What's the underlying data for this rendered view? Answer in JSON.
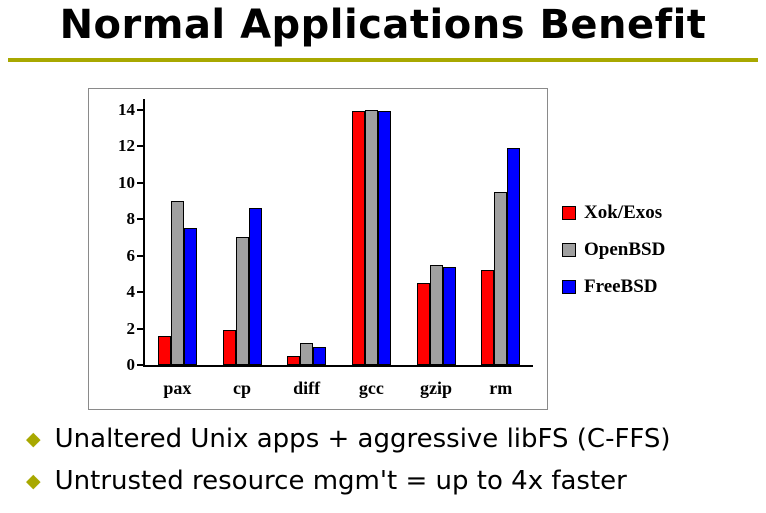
{
  "slide": {
    "title": "Normal Applications Benefit",
    "accent_color": "#a8a800",
    "bullet_marker": "◆",
    "bullets": [
      {
        "text": "Unaltered Unix apps + aggressive libFS (C-FFS)"
      },
      {
        "text": "Untrusted resource mgm't = up to 4x faster"
      }
    ]
  },
  "chart_data": {
    "type": "bar",
    "title": "",
    "xlabel": "",
    "ylabel": "",
    "categories": [
      "pax",
      "cp",
      "diff",
      "gcc",
      "gzip",
      "rm"
    ],
    "series": [
      {
        "name": "Xok/Exos",
        "color": "#ff0000",
        "values": [
          1.6,
          1.9,
          0.5,
          13.9,
          4.5,
          5.2
        ]
      },
      {
        "name": "OpenBSD",
        "color": "#a0a0a0",
        "values": [
          9.0,
          7.0,
          1.2,
          14.0,
          5.5,
          9.5
        ]
      },
      {
        "name": "FreeBSD",
        "color": "#0000ff",
        "values": [
          7.5,
          8.6,
          1.0,
          13.9,
          5.4,
          11.9
        ]
      }
    ],
    "ylim": [
      0,
      14
    ],
    "ytick_step": 2,
    "grid": false,
    "legend_position": "right"
  }
}
